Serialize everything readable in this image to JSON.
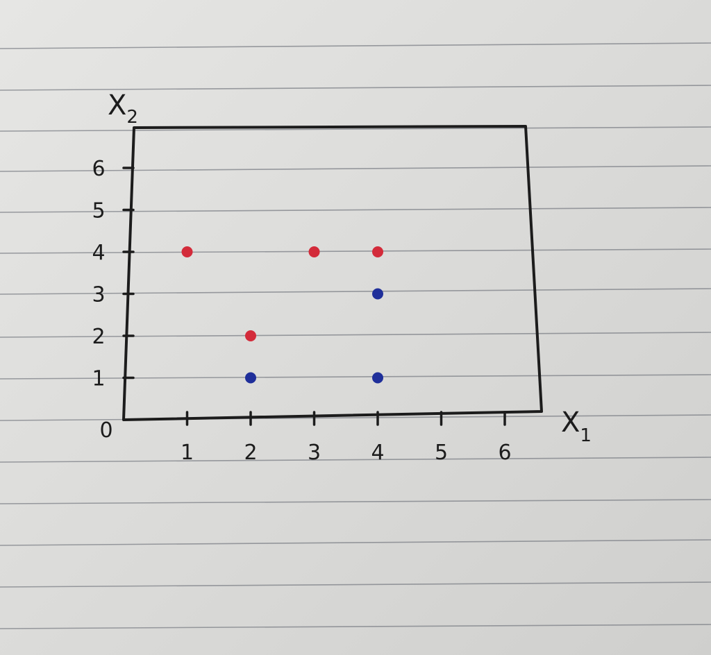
{
  "chart_data": {
    "type": "scatter",
    "title": "",
    "xlabel": "X",
    "xlabel_subscript": "1",
    "ylabel": "X",
    "ylabel_subscript": "2",
    "origin_label": "0",
    "xlim": [
      0,
      6.6
    ],
    "ylim": [
      0,
      7
    ],
    "x_ticks": [
      "1",
      "2",
      "3",
      "4",
      "5",
      "6"
    ],
    "y_ticks": [
      "1",
      "2",
      "3",
      "4",
      "5",
      "6"
    ],
    "grid": false,
    "series": [
      {
        "color": "#d32b3a",
        "points": [
          [
            1,
            4
          ],
          [
            2,
            2
          ],
          [
            3,
            4
          ],
          [
            4,
            4
          ]
        ]
      },
      {
        "color": "#1f2f9a",
        "points": [
          [
            2,
            1
          ],
          [
            4,
            1
          ],
          [
            4,
            3
          ]
        ]
      }
    ]
  },
  "colors": {
    "ink": "#1c1c1c",
    "paper": "#e0e0de",
    "ruled_line": "#7d8087"
  }
}
